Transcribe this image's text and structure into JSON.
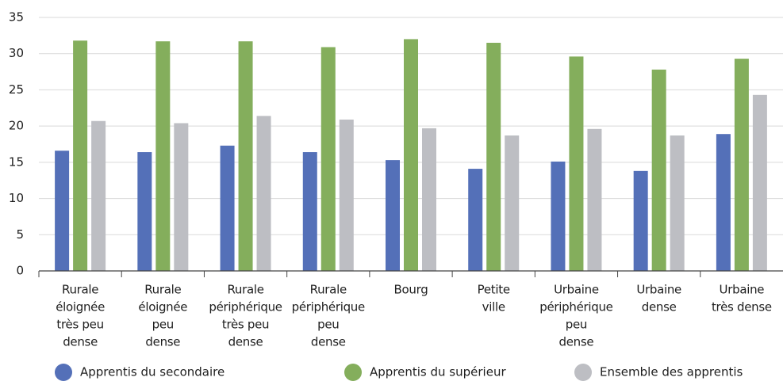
{
  "chart_data": {
    "type": "bar",
    "categories": [
      [
        "Rurale",
        "éloignée",
        "très peu",
        "dense"
      ],
      [
        "Rurale",
        "éloignée",
        "peu",
        "dense"
      ],
      [
        "Rurale",
        "périphérique",
        "très peu",
        "dense"
      ],
      [
        "Rurale",
        "périphérique",
        "peu",
        "dense"
      ],
      [
        "Bourg"
      ],
      [
        "Petite",
        "ville"
      ],
      [
        "Urbaine",
        "périphérique",
        "peu",
        "dense"
      ],
      [
        "Urbaine",
        "dense"
      ],
      [
        "Urbaine",
        "très dense"
      ]
    ],
    "series": [
      {
        "name": "Apprentis du secondaire",
        "color": "#5470b8",
        "values": [
          16.6,
          16.4,
          17.3,
          16.4,
          15.3,
          14.1,
          15.1,
          13.8,
          18.9
        ]
      },
      {
        "name": "Apprentis du supérieur",
        "color": "#84ae5c",
        "values": [
          31.8,
          31.7,
          31.7,
          30.9,
          32.0,
          31.5,
          29.6,
          27.8,
          29.3
        ]
      },
      {
        "name": "Ensemble des apprentis",
        "color": "#bdbec3",
        "values": [
          20.7,
          20.4,
          21.4,
          20.9,
          19.7,
          18.7,
          19.6,
          18.7,
          24.3
        ]
      }
    ],
    "ylim": [
      0,
      35
    ],
    "yticks": [
      0,
      5,
      10,
      15,
      20,
      25,
      30,
      35
    ],
    "grid": true,
    "legend": "bottom"
  }
}
